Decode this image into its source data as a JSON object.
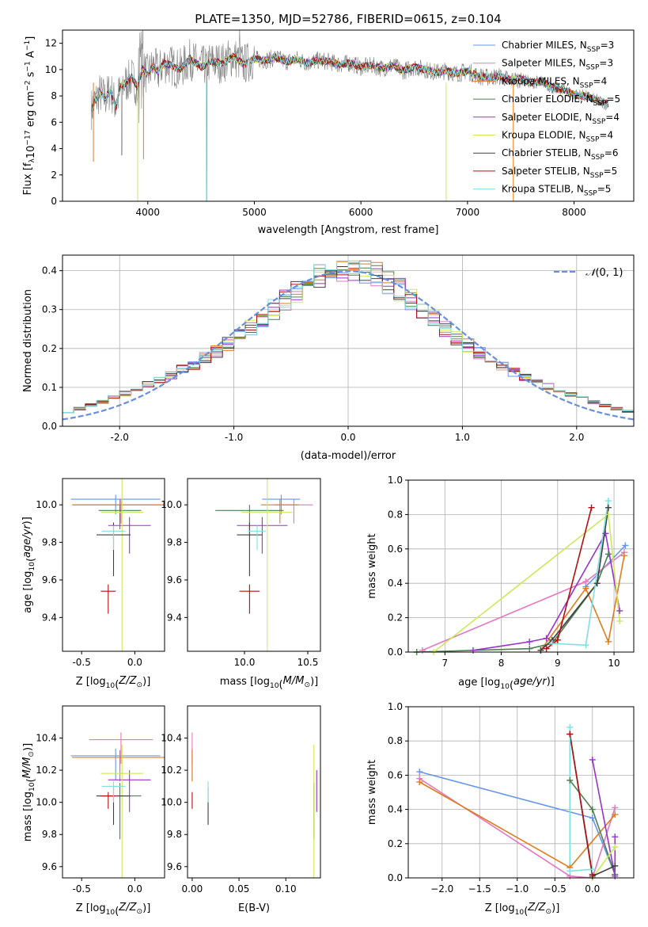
{
  "figure_title": "PLATE=1350, MJD=52786, FIBERID=0615, z=0.104",
  "chart_data": [
    {
      "id": "spectrum",
      "type": "line",
      "xlabel": "wavelength [Angstrom, rest frame]",
      "ylabel": "Flux [f",
      "ylabel_parts": [
        "Flux [f",
        "λ",
        "10",
        "−17",
        " erg cm",
        "−2",
        " s",
        "−1",
        " A",
        "−1",
        "]"
      ],
      "xlim": [
        3200,
        8560
      ],
      "ylim": [
        0,
        13
      ],
      "xticks": [
        4000,
        5000,
        6000,
        7000,
        8000
      ],
      "yticks": [
        0,
        2,
        4,
        6,
        8,
        10,
        12
      ],
      "grid": false,
      "legend_position": "top-right",
      "data_series": {
        "name": "data",
        "color": "#808080",
        "x": [
          3470,
          3500,
          3550,
          3600,
          3650,
          3700,
          3750,
          3800,
          3850,
          3900,
          3950,
          4000,
          4050,
          4100,
          4150,
          4200,
          4300,
          4400,
          4500,
          4600,
          4700,
          4800,
          4900,
          5000,
          5100,
          5200,
          5300,
          5400,
          5500,
          5600,
          5700,
          5800,
          5900,
          6000,
          6100,
          6200,
          6300,
          6400,
          6500,
          6600,
          6700,
          6800,
          6900,
          7000,
          7100,
          7200,
          7300,
          7400,
          7500,
          7600,
          7700,
          7800,
          7900,
          8000,
          8100,
          8200,
          8300
        ],
        "y": [
          7.0,
          7.5,
          8.2,
          7.8,
          8.5,
          7.2,
          8.8,
          9.0,
          9.4,
          8.7,
          10.0,
          9.6,
          10.3,
          9.8,
          10.5,
          10.4,
          10.0,
          10.8,
          10.2,
          10.6,
          10.5,
          11.0,
          10.4,
          10.8,
          10.7,
          10.9,
          10.6,
          10.8,
          10.5,
          10.7,
          10.6,
          10.4,
          10.5,
          10.2,
          10.3,
          10.1,
          10.3,
          9.9,
          10.2,
          10.0,
          9.8,
          9.9,
          9.7,
          9.9,
          9.5,
          9.4,
          9.5,
          9.2,
          9.3,
          9.0,
          9.1,
          8.6,
          8.5,
          8.1,
          8.0,
          7.7,
          7.4
        ]
      },
      "series": [
        {
          "name": "Chabrier MILES",
          "nssp": "3",
          "color": "#6495ed"
        },
        {
          "name": "Salpeter MILES",
          "nssp": "3",
          "color": "#e377c2"
        },
        {
          "name": "Kroupa MILES",
          "nssp": "4",
          "color": "#e07b1c"
        },
        {
          "name": "Chabrier ELODIE",
          "nssp": "5",
          "color": "#4f7f52"
        },
        {
          "name": "Salpeter ELODIE",
          "nssp": "4",
          "color": "#9932cc"
        },
        {
          "name": "Kroupa ELODIE",
          "nssp": "4",
          "color": "#cde85a"
        },
        {
          "name": "Chabrier STELIB",
          "nssp": "6",
          "color": "#404040"
        },
        {
          "name": "Salpeter STELIB",
          "nssp": "5",
          "color": "#b01010"
        },
        {
          "name": "Kroupa STELIB",
          "nssp": "5",
          "color": "#7fdfe0"
        }
      ]
    },
    {
      "id": "residuals",
      "type": "line",
      "xlabel": "(data-model)/error",
      "ylabel": "Normed distribution",
      "xlim": [
        -2.5,
        2.5
      ],
      "ylim": [
        0,
        0.44
      ],
      "xticks": [
        -2,
        -1,
        0,
        1,
        2
      ],
      "yticks": [
        0.0,
        0.1,
        0.2,
        0.3,
        0.4
      ],
      "grid": true,
      "legend_position": "top-right",
      "reference_curve": {
        "name": "N(0,1)",
        "mu": 0,
        "sigma": 1,
        "color": "#6a8fd8"
      },
      "bin_width": 0.1
    },
    {
      "id": "age_vs_Z",
      "type": "scatter",
      "xlabel": "Z [log10(Z/Z⊙)]",
      "ylabel": "age [log10(age/yr)]",
      "xlim": [
        -0.68,
        0.28
      ],
      "ylim": [
        9.22,
        10.14
      ],
      "xticks": [
        -0.5,
        0.0
      ],
      "yticks": [
        9.4,
        9.6,
        9.8,
        10.0
      ],
      "points": [
        {
          "series": "Chabrier MILES",
          "x": -0.18,
          "y": 10.03,
          "xerr": 0.42,
          "yerr": 0.08
        },
        {
          "series": "Salpeter MILES",
          "x": -0.13,
          "y": 10.0,
          "xerr": 0.45,
          "yerr": 0.1
        },
        {
          "series": "Kroupa MILES",
          "x": -0.14,
          "y": 10.0,
          "xerr": 0.45,
          "yerr": 0.1
        },
        {
          "series": "Chabrier ELODIE",
          "x": -0.14,
          "y": 9.97,
          "xerr": 0.2,
          "yerr": 0.1
        },
        {
          "series": "Salpeter ELODIE",
          "x": -0.05,
          "y": 9.89,
          "xerr": 0.2,
          "yerr": 0.15
        },
        {
          "series": "Kroupa ELODIE",
          "x": -0.12,
          "y": 9.96,
          "xerr": 0.2,
          "yerr": 0.7
        },
        {
          "series": "Chabrier STELIB",
          "x": -0.2,
          "y": 9.84,
          "xerr": 0.16,
          "yerr": 0.22
        },
        {
          "series": "Salpeter STELIB",
          "x": -0.25,
          "y": 9.54,
          "xerr": 0.07,
          "yerr": 0.12
        },
        {
          "series": "Kroupa STELIB",
          "x": -0.2,
          "y": 9.86,
          "xerr": 0.11,
          "yerr": 0.1
        }
      ]
    },
    {
      "id": "age_vs_mass",
      "type": "scatter",
      "xlabel": "mass [log10(M/M⊙)]",
      "ylabel": "",
      "xlim": [
        9.55,
        10.6
      ],
      "ylim": [
        9.22,
        10.14
      ],
      "xticks": [
        10.0,
        10.5
      ],
      "yticks": [
        9.4,
        9.6,
        9.8,
        10.0
      ],
      "points": [
        {
          "series": "Chabrier MILES",
          "x": 10.29,
          "y": 10.03,
          "xerr": 0.15,
          "yerr": 0.08
        },
        {
          "series": "Salpeter MILES",
          "x": 10.39,
          "y": 10.0,
          "xerr": 0.15,
          "yerr": 0.1
        },
        {
          "series": "Kroupa MILES",
          "x": 10.28,
          "y": 10.0,
          "xerr": 0.15,
          "yerr": 0.1
        },
        {
          "series": "Chabrier ELODIE",
          "x": 10.04,
          "y": 9.97,
          "xerr": 0.27,
          "yerr": 0.1
        },
        {
          "series": "Salpeter ELODIE",
          "x": 10.14,
          "y": 9.89,
          "xerr": 0.2,
          "yerr": 0.15
        },
        {
          "series": "Kroupa ELODIE",
          "x": 10.18,
          "y": 9.96,
          "xerr": 0.2,
          "yerr": 0.7
        },
        {
          "series": "Chabrier STELIB",
          "x": 10.04,
          "y": 9.84,
          "xerr": 0.1,
          "yerr": 0.22
        },
        {
          "series": "Salpeter STELIB",
          "x": 10.04,
          "y": 9.54,
          "xerr": 0.08,
          "yerr": 0.12
        },
        {
          "series": "Kroupa STELIB",
          "x": 10.1,
          "y": 9.86,
          "xerr": 0.07,
          "yerr": 0.1
        }
      ]
    },
    {
      "id": "weight_vs_age",
      "type": "line",
      "xlabel": "age [log10(age/yr)]",
      "ylabel": "mass weight",
      "xlim": [
        6.35,
        10.35
      ],
      "ylim": [
        0,
        1
      ],
      "xticks": [
        7,
        8,
        9,
        10
      ],
      "yticks": [
        0.0,
        0.2,
        0.4,
        0.6,
        0.8,
        1.0
      ],
      "grid": true,
      "series": [
        {
          "name": "Chabrier MILES",
          "x": [
            9.5,
            10.2
          ],
          "y": [
            0.38,
            0.62
          ]
        },
        {
          "name": "Salpeter MILES",
          "x": [
            6.6,
            9.5,
            10.18
          ],
          "y": [
            0.01,
            0.41,
            0.58
          ]
        },
        {
          "name": "Kroupa MILES",
          "x": [
            8.7,
            9.5,
            9.9,
            10.18
          ],
          "y": [
            0.01,
            0.37,
            0.06,
            0.56
          ]
        },
        {
          "name": "Chabrier ELODIE",
          "x": [
            6.5,
            8.5,
            8.9,
            9.7,
            9.9
          ],
          "y": [
            0.0,
            0.02,
            0.05,
            0.4,
            0.57
          ]
        },
        {
          "name": "Salpeter ELODIE",
          "x": [
            7.5,
            8.5,
            8.8,
            9.85,
            10.1
          ],
          "y": [
            0.01,
            0.06,
            0.08,
            0.69,
            0.24
          ]
        },
        {
          "name": "Kroupa ELODIE",
          "x": [
            6.8,
            9.9,
            10.1
          ],
          "y": [
            0.0,
            0.8,
            0.18
          ]
        },
        {
          "name": "Chabrier STELIB",
          "x": [
            8.7,
            8.9,
            9.7,
            9.9
          ],
          "y": [
            0.01,
            0.07,
            0.4,
            0.84
          ]
        },
        {
          "name": "Salpeter STELIB",
          "x": [
            8.8,
            9.0,
            9.6
          ],
          "y": [
            0.02,
            0.07,
            0.84
          ]
        },
        {
          "name": "Kroupa STELIB",
          "x": [
            8.9,
            9.5,
            9.9
          ],
          "y": [
            0.05,
            0.04,
            0.88
          ]
        }
      ]
    },
    {
      "id": "mass_vs_Z",
      "type": "scatter",
      "xlabel": "Z [log10(Z/Z⊙)]",
      "ylabel": "mass [log10(M/M⊙)]",
      "xlim": [
        -0.68,
        0.28
      ],
      "ylim": [
        9.53,
        10.6
      ],
      "xticks": [
        -0.5,
        0.0
      ],
      "yticks": [
        9.6,
        9.8,
        10.0,
        10.2,
        10.4
      ],
      "points": [
        {
          "series": "Chabrier MILES",
          "x": -0.18,
          "y": 10.29,
          "xerr": 0.42,
          "yerr": 0.15
        },
        {
          "series": "Salpeter MILES",
          "x": -0.13,
          "y": 10.39,
          "xerr": 0.3,
          "yerr": 0.15
        },
        {
          "series": "Kroupa MILES",
          "x": -0.14,
          "y": 10.28,
          "xerr": 0.45,
          "yerr": 0.15
        },
        {
          "series": "Chabrier ELODIE",
          "x": -0.14,
          "y": 10.04,
          "xerr": 0.2,
          "yerr": 0.27
        },
        {
          "series": "Salpeter ELODIE",
          "x": -0.05,
          "y": 10.14,
          "xerr": 0.2,
          "yerr": 0.2
        },
        {
          "series": "Kroupa ELODIE",
          "x": -0.12,
          "y": 10.18,
          "xerr": 0.2,
          "yerr": 0.6
        },
        {
          "series": "Chabrier STELIB",
          "x": -0.2,
          "y": 10.04,
          "xerr": 0.16,
          "yerr": 0.18
        },
        {
          "series": "Salpeter STELIB",
          "x": -0.25,
          "y": 10.04,
          "xerr": 0.07,
          "yerr": 0.08
        },
        {
          "series": "Kroupa STELIB",
          "x": -0.2,
          "y": 10.1,
          "xerr": 0.11,
          "yerr": 0.1
        }
      ]
    },
    {
      "id": "mass_vs_ebv",
      "type": "scatter",
      "xlabel": "E(B-V)",
      "ylabel": "",
      "xlim": [
        -0.005,
        0.137
      ],
      "ylim": [
        9.53,
        10.6
      ],
      "xticks": [
        0.0,
        0.05,
        0.1
      ],
      "tick_labels": [
        "0.00",
        "0.05",
        "0.10"
      ],
      "yticks": [
        9.6,
        9.8,
        10.0,
        10.2,
        10.4
      ],
      "points": [
        {
          "series": "Chabrier MILES",
          "x": 0.0,
          "y": 10.29,
          "yerr": 0.15
        },
        {
          "series": "Salpeter MILES",
          "x": 0.0,
          "y": 10.39,
          "yerr": 0.15
        },
        {
          "series": "Kroupa MILES",
          "x": 0.0,
          "y": 10.28,
          "yerr": 0.15
        },
        {
          "series": "Chabrier ELODIE",
          "x": 0.13,
          "y": 10.04,
          "yerr": 0.27
        },
        {
          "series": "Salpeter ELODIE",
          "x": 0.133,
          "y": 10.14,
          "yerr": 0.2
        },
        {
          "series": "Kroupa ELODIE",
          "x": 0.13,
          "y": 10.18,
          "yerr": 0.6
        },
        {
          "series": "Chabrier STELIB",
          "x": 0.017,
          "y": 10.04,
          "yerr": 0.18
        },
        {
          "series": "Salpeter STELIB",
          "x": 0.0,
          "y": 10.04,
          "yerr": 0.08
        },
        {
          "series": "Kroupa STELIB",
          "x": 0.017,
          "y": 10.1,
          "yerr": 0.1
        }
      ]
    },
    {
      "id": "weight_vs_Z",
      "type": "line",
      "xlabel": "Z [log10(Z/Z⊙)]",
      "ylabel": "mass weight",
      "xlim": [
        -2.45,
        0.55
      ],
      "ylim": [
        0,
        1
      ],
      "xticks": [
        -2.0,
        -1.5,
        -1.0,
        -0.5,
        0.0
      ],
      "yticks": [
        0.0,
        0.2,
        0.4,
        0.6,
        0.8,
        1.0
      ],
      "grid": true,
      "series": [
        {
          "name": "Chabrier MILES",
          "x": [
            -2.3,
            0.0,
            0.3
          ],
          "y": [
            0.62,
            0.35,
            0.02
          ]
        },
        {
          "name": "Salpeter MILES",
          "x": [
            -2.3,
            -0.3,
            0.0,
            0.3
          ],
          "y": [
            0.58,
            0.01,
            0.0,
            0.41
          ]
        },
        {
          "name": "Kroupa MILES",
          "x": [
            -2.3,
            -0.3,
            0.3
          ],
          "y": [
            0.56,
            0.06,
            0.37
          ]
        },
        {
          "name": "Chabrier ELODIE",
          "x": [
            -0.3,
            0.0,
            0.3
          ],
          "y": [
            0.57,
            0.4,
            0.02
          ]
        },
        {
          "name": "Salpeter ELODIE",
          "x": [
            0.0,
            0.3,
            0.3
          ],
          "y": [
            0.69,
            0.01,
            0.24
          ]
        },
        {
          "name": "Kroupa ELODIE",
          "x": [
            0.0,
            0.3
          ],
          "y": [
            0.0,
            0.18
          ]
        },
        {
          "name": "Chabrier STELIB",
          "x": [
            -0.3,
            0.0,
            0.3
          ],
          "y": [
            0.84,
            0.01,
            0.07
          ]
        },
        {
          "name": "Salpeter STELIB",
          "x": [
            -0.3,
            0.0
          ],
          "y": [
            0.84,
            0.02
          ]
        },
        {
          "name": "Kroupa STELIB",
          "x": [
            -0.3,
            -0.3,
            0.0
          ],
          "y": [
            0.88,
            0.04,
            0.05
          ]
        }
      ]
    }
  ]
}
